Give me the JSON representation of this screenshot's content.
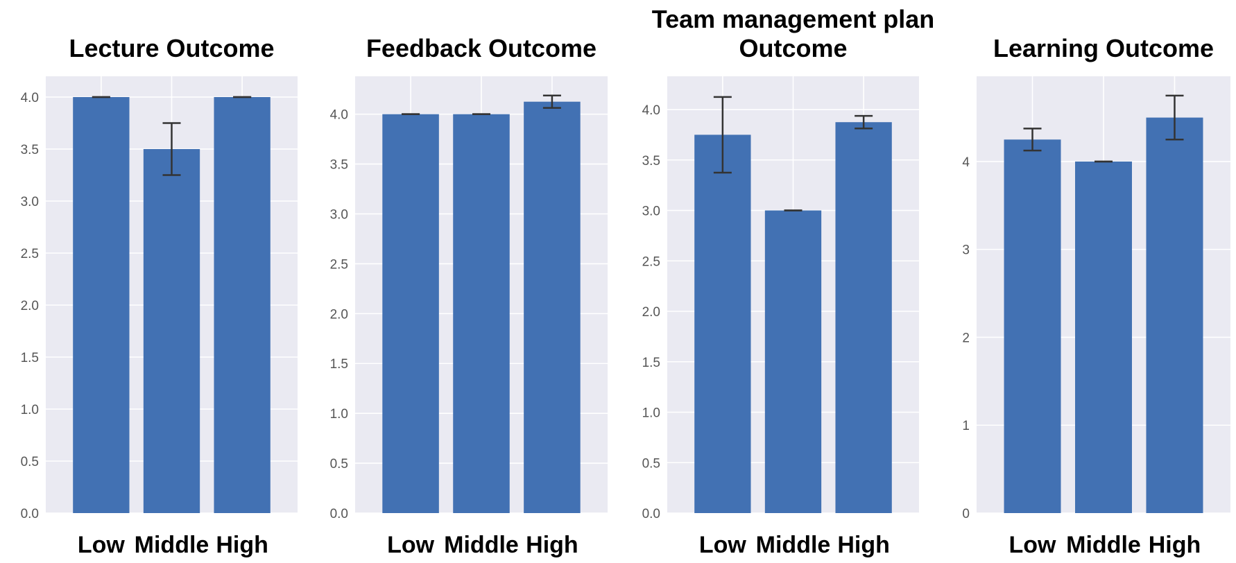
{
  "colors": {
    "bar": "#4271b3",
    "plot_background": "#eaeaf2",
    "grid": "#ffffff",
    "error_bar": "#333333"
  },
  "chart_data": [
    {
      "type": "bar",
      "title": [
        "Lecture Outcome"
      ],
      "categories": [
        "Low",
        "Middle",
        "High"
      ],
      "values": [
        4.0,
        3.5,
        4.0
      ],
      "errors": [
        0.0,
        0.25,
        0.0
      ],
      "ylim": [
        0,
        4.2
      ],
      "yticks": [
        0.0,
        0.5,
        1.0,
        1.5,
        2.0,
        2.5,
        3.0,
        3.5,
        4.0
      ],
      "ytick_labels": [
        "0.0",
        "0.5",
        "1.0",
        "1.5",
        "2.0",
        "2.5",
        "3.0",
        "3.5",
        "4.0"
      ],
      "xlabel": "",
      "ylabel": "",
      "grid": true
    },
    {
      "type": "bar",
      "title": [
        "Feedback Outcome"
      ],
      "categories": [
        "Low",
        "Middle",
        "High"
      ],
      "values": [
        4.0,
        4.0,
        4.125
      ],
      "errors": [
        0.0,
        0.0,
        0.0625
      ],
      "ylim": [
        0,
        4.38
      ],
      "yticks": [
        0.0,
        0.5,
        1.0,
        1.5,
        2.0,
        2.5,
        3.0,
        3.5,
        4.0
      ],
      "ytick_labels": [
        "0.0",
        "0.5",
        "1.0",
        "1.5",
        "2.0",
        "2.5",
        "3.0",
        "3.5",
        "4.0"
      ],
      "xlabel": "",
      "ylabel": "",
      "grid": true
    },
    {
      "type": "bar",
      "title": [
        "Team management plan",
        "Outcome"
      ],
      "categories": [
        "Low",
        "Middle",
        "High"
      ],
      "values": [
        3.75,
        3.0,
        3.875
      ],
      "errors": [
        0.375,
        0.0,
        0.0625
      ],
      "ylim": [
        0,
        4.33
      ],
      "yticks": [
        0.0,
        0.5,
        1.0,
        1.5,
        2.0,
        2.5,
        3.0,
        3.5,
        4.0
      ],
      "ytick_labels": [
        "0.0",
        "0.5",
        "1.0",
        "1.5",
        "2.0",
        "2.5",
        "3.0",
        "3.5",
        "4.0"
      ],
      "xlabel": "",
      "ylabel": "",
      "grid": true
    },
    {
      "type": "bar",
      "title": [
        "Learning Outcome"
      ],
      "categories": [
        "Low",
        "Middle",
        "High"
      ],
      "values": [
        4.25,
        4.0,
        4.5
      ],
      "errors": [
        0.125,
        0.0,
        0.25
      ],
      "ylim": [
        0,
        4.97
      ],
      "yticks": [
        0,
        1,
        2,
        3,
        4
      ],
      "ytick_labels": [
        "0",
        "1",
        "2",
        "3",
        "4"
      ],
      "xlabel": "",
      "ylabel": "",
      "grid": true
    }
  ]
}
